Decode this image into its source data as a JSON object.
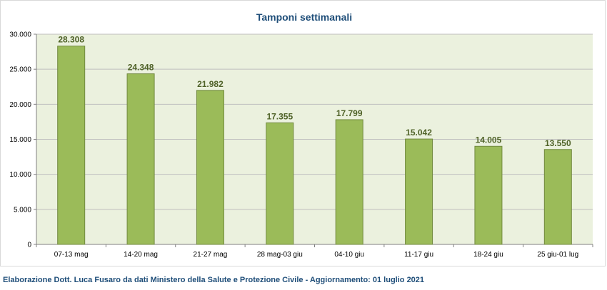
{
  "chart_data": {
    "type": "bar",
    "title": "Tamponi settimanali",
    "xlabel": "",
    "ylabel": "",
    "categories": [
      "07-13 mag",
      "14-20 mag",
      "21-27 mag",
      "28 mag-03 giu",
      "04-10 giu",
      "11-17 giu",
      "18-24 giu",
      "25 giu-01 lug"
    ],
    "values": [
      28308,
      24348,
      21982,
      17355,
      17799,
      15042,
      14005,
      13550
    ],
    "data_labels": [
      "28.308",
      "24.348",
      "21.982",
      "17.355",
      "17.799",
      "15.042",
      "14.005",
      "13.550"
    ],
    "ylim": [
      0,
      30000
    ],
    "yticks": [
      0,
      5000,
      10000,
      15000,
      20000,
      25000,
      30000
    ],
    "ytick_labels": [
      "0",
      "5.000",
      "10.000",
      "15.000",
      "20.000",
      "25.000",
      "30.000"
    ],
    "grid": true,
    "legend": "none"
  },
  "footer": {
    "text": "Elaborazione Dott. Luca Fusaro da dati Ministero della Salute e Protezione Civile - Aggiornamento: 01 luglio 2021"
  },
  "colors": {
    "bar_fill": "#9bbb59",
    "bar_stroke": "#71893f",
    "plot_background": "#ebf1de",
    "gridline": "#bfbfbf",
    "data_label": "#4f6228",
    "title": "#1f4e79",
    "footer": "#1f4e79"
  }
}
